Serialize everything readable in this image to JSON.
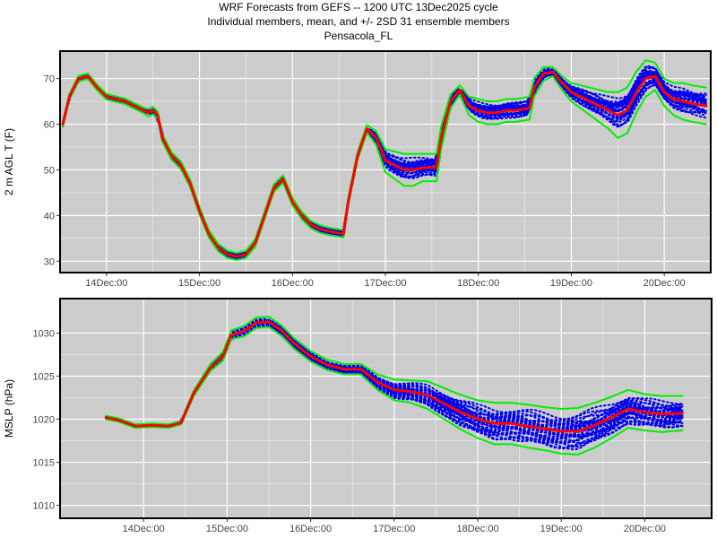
{
  "header": {
    "line1": "WRF Forecasts from GEFS --  1200 UTC 13Dec2025  cycle",
    "line2": "Individual members, mean, and +/- 2SD    31 ensemble members",
    "line3": "Pensacola_FL"
  },
  "colors": {
    "panel_bg": "#cccccc",
    "grid": "#ffffff",
    "members": "#0000ee",
    "mean": "#ff0000",
    "sd": "#00ee00"
  },
  "chart_data": [
    {
      "type": "line",
      "ylabel": "2 m AGL T (F)",
      "xlabel": "",
      "xlim": [
        13.5,
        20.5
      ],
      "ylim": [
        27.5,
        76
      ],
      "x_ticks": [
        14,
        15,
        16,
        17,
        18,
        19,
        20
      ],
      "x_tick_labels": [
        "14Dec:00",
        "15Dec:00",
        "16Dec:00",
        "17Dec:00",
        "18Dec:00",
        "19Dec:00",
        "20Dec:00"
      ],
      "y_ticks": [
        30,
        40,
        50,
        60,
        70
      ],
      "y_tick_labels": [
        "30",
        "40",
        "50",
        "60",
        "70"
      ],
      "ensemble_members": 31,
      "series": [
        {
          "name": "mean",
          "x": [
            13.53,
            13.6,
            13.7,
            13.8,
            13.9,
            14.0,
            14.2,
            14.4,
            14.45,
            14.5,
            14.55,
            14.6,
            14.7,
            14.8,
            14.9,
            15.0,
            15.1,
            15.2,
            15.3,
            15.4,
            15.5,
            15.6,
            15.7,
            15.8,
            15.9,
            16.0,
            16.1,
            16.2,
            16.3,
            16.4,
            16.55,
            16.6,
            16.7,
            16.8,
            16.9,
            17.0,
            17.1,
            17.2,
            17.3,
            17.4,
            17.55,
            17.6,
            17.7,
            17.8,
            17.9,
            18.0,
            18.1,
            18.2,
            18.3,
            18.4,
            18.55,
            18.6,
            18.7,
            18.8,
            18.9,
            19.0,
            19.1,
            19.2,
            19.3,
            19.4,
            19.5,
            19.6,
            19.7,
            19.8,
            19.9,
            20.0,
            20.1,
            20.2,
            20.3,
            20.45
          ],
          "values": [
            60,
            66,
            70,
            70.5,
            68,
            66,
            65,
            63,
            62.5,
            63,
            62,
            57,
            53,
            51,
            47,
            41,
            36,
            33,
            31.5,
            31,
            31.5,
            34,
            40,
            46,
            48,
            43,
            40,
            38,
            37,
            36.5,
            36,
            43,
            53,
            59,
            57,
            52,
            51,
            50,
            50,
            50.5,
            50.5,
            57,
            65,
            67.5,
            64,
            63,
            62.5,
            62.5,
            63,
            63,
            63.5,
            68,
            71,
            71.5,
            69,
            67,
            66,
            65,
            64,
            63,
            62,
            63,
            67,
            70,
            70.5,
            67,
            65.5,
            65,
            64.5,
            64
          ]
        },
        {
          "name": "mean+2SD",
          "x": [
            13.53,
            13.6,
            13.7,
            13.8,
            13.9,
            14.0,
            14.2,
            14.4,
            14.45,
            14.5,
            14.55,
            14.6,
            14.7,
            14.8,
            14.9,
            15.0,
            15.1,
            15.2,
            15.3,
            15.4,
            15.5,
            15.6,
            15.7,
            15.8,
            15.9,
            16.0,
            16.1,
            16.2,
            16.3,
            16.4,
            16.55,
            16.6,
            16.7,
            16.8,
            16.9,
            17.0,
            17.1,
            17.2,
            17.3,
            17.4,
            17.55,
            17.6,
            17.7,
            17.8,
            17.9,
            18.0,
            18.1,
            18.2,
            18.3,
            18.4,
            18.55,
            18.6,
            18.7,
            18.8,
            18.9,
            19.0,
            19.1,
            19.2,
            19.3,
            19.4,
            19.5,
            19.6,
            19.7,
            19.8,
            19.9,
            20.0,
            20.1,
            20.2,
            20.3,
            20.45
          ],
          "values": [
            60.6,
            66.6,
            70.6,
            71.1,
            68.6,
            66.6,
            65.6,
            63.6,
            63.3,
            63.8,
            62.8,
            57.8,
            53.8,
            51.8,
            47.8,
            41.8,
            36.8,
            33.8,
            32.3,
            31.8,
            32.3,
            34.8,
            40.8,
            46.8,
            48.8,
            43.8,
            40.8,
            38.8,
            37.8,
            37.3,
            36.8,
            43.8,
            53.8,
            59.8,
            58.5,
            54.5,
            54,
            53.5,
            53.5,
            53.5,
            53.5,
            59.5,
            66.5,
            68.5,
            66,
            65.5,
            65,
            65,
            65.5,
            65.5,
            66,
            70,
            72.5,
            72.5,
            70.5,
            69,
            68.5,
            68,
            67.5,
            67,
            67,
            68,
            71.5,
            74,
            73.5,
            70,
            69,
            69,
            68.5,
            68
          ]
        },
        {
          "name": "mean-2SD",
          "x": [
            13.53,
            13.6,
            13.7,
            13.8,
            13.9,
            14.0,
            14.2,
            14.4,
            14.45,
            14.5,
            14.55,
            14.6,
            14.7,
            14.8,
            14.9,
            15.0,
            15.1,
            15.2,
            15.3,
            15.4,
            15.5,
            15.6,
            15.7,
            15.8,
            15.9,
            16.0,
            16.1,
            16.2,
            16.3,
            16.4,
            16.55,
            16.6,
            16.7,
            16.8,
            16.9,
            17.0,
            17.1,
            17.2,
            17.3,
            17.4,
            17.55,
            17.6,
            17.7,
            17.8,
            17.9,
            18.0,
            18.1,
            18.2,
            18.3,
            18.4,
            18.55,
            18.6,
            18.7,
            18.8,
            18.9,
            19.0,
            19.1,
            19.2,
            19.3,
            19.4,
            19.5,
            19.6,
            19.7,
            19.8,
            19.9,
            20.0,
            20.1,
            20.2,
            20.3,
            20.45
          ],
          "values": [
            59.4,
            65.4,
            69.4,
            69.9,
            67.4,
            65.4,
            64.4,
            62.4,
            61.7,
            62.2,
            61.2,
            56.2,
            52.2,
            50.2,
            46.2,
            40.2,
            35.2,
            32.2,
            30.7,
            30.2,
            30.7,
            33.2,
            39.2,
            45.2,
            47.2,
            42.2,
            39.2,
            37.2,
            36.2,
            35.7,
            35.2,
            42.2,
            52.2,
            58.2,
            55.5,
            49.5,
            48,
            46.5,
            46.5,
            47.5,
            47.5,
            54.5,
            63.5,
            66.5,
            62,
            60.5,
            60,
            60,
            60.5,
            60.5,
            61,
            66,
            69.5,
            70.5,
            67.5,
            65,
            63.5,
            62,
            60.5,
            59,
            57,
            58,
            62.5,
            66,
            67.5,
            64,
            62,
            61,
            60.5,
            60
          ]
        }
      ]
    },
    {
      "type": "line",
      "ylabel": "MSLP (hPa)",
      "xlabel": "",
      "xlim": [
        13.0,
        20.8
      ],
      "ylim": [
        1008.5,
        1034
      ],
      "x_ticks": [
        14,
        15,
        16,
        17,
        18,
        19,
        20
      ],
      "x_tick_labels": [
        "14Dec:00",
        "15Dec:00",
        "16Dec:00",
        "17Dec:00",
        "18Dec:00",
        "19Dec:00",
        "20Dec:00"
      ],
      "y_ticks": [
        1010,
        1015,
        1020,
        1025,
        1030
      ],
      "y_tick_labels": [
        "1010",
        "1015",
        "1020",
        "1025",
        "1030"
      ],
      "ensemble_members": 31,
      "series": [
        {
          "name": "mean",
          "x": [
            13.55,
            13.7,
            13.9,
            14.1,
            14.3,
            14.45,
            14.6,
            14.8,
            14.95,
            15.05,
            15.2,
            15.35,
            15.5,
            15.65,
            15.8,
            16.0,
            16.2,
            16.4,
            16.6,
            16.8,
            17.0,
            17.2,
            17.4,
            17.6,
            17.8,
            18.0,
            18.2,
            18.4,
            18.6,
            18.8,
            19.0,
            19.2,
            19.4,
            19.6,
            19.8,
            20.0,
            20.2,
            20.45
          ],
          "values": [
            1020.2,
            1019.9,
            1019.2,
            1019.3,
            1019.2,
            1019.6,
            1023,
            1026,
            1027.3,
            1029.8,
            1030.2,
            1031.2,
            1031.3,
            1030.3,
            1028.8,
            1027.3,
            1026.3,
            1025.8,
            1025.8,
            1024.3,
            1023.4,
            1023.2,
            1022.8,
            1021.8,
            1020.8,
            1020,
            1019.5,
            1019.5,
            1019.2,
            1018.9,
            1018.6,
            1018.6,
            1019.3,
            1020.2,
            1021.2,
            1020.8,
            1020.6,
            1020.7
          ]
        },
        {
          "name": "mean+2SD",
          "x": [
            13.55,
            13.7,
            13.9,
            14.1,
            14.3,
            14.45,
            14.6,
            14.8,
            14.95,
            15.05,
            15.2,
            15.35,
            15.5,
            15.65,
            15.8,
            16.0,
            16.2,
            16.4,
            16.6,
            16.8,
            17.0,
            17.2,
            17.4,
            17.6,
            17.8,
            18.0,
            18.2,
            18.4,
            18.6,
            18.8,
            19.0,
            19.2,
            19.4,
            19.6,
            19.8,
            20.0,
            20.2,
            20.45
          ],
          "values": [
            1020.4,
            1020.1,
            1019.4,
            1019.5,
            1019.4,
            1019.8,
            1023.3,
            1026.4,
            1027.8,
            1030.3,
            1030.8,
            1031.8,
            1031.9,
            1030.9,
            1029.4,
            1027.9,
            1026.9,
            1026.4,
            1026.4,
            1025.2,
            1024.6,
            1024.5,
            1024.4,
            1023.6,
            1022.8,
            1022.2,
            1021.9,
            1021.9,
            1021.7,
            1021.4,
            1021.2,
            1021.3,
            1021.9,
            1022.6,
            1023.4,
            1022.9,
            1022.7,
            1022.7
          ]
        },
        {
          "name": "mean-2SD",
          "x": [
            13.55,
            13.7,
            13.9,
            14.1,
            14.3,
            14.45,
            14.6,
            14.8,
            14.95,
            15.05,
            15.2,
            15.35,
            15.5,
            15.65,
            15.8,
            16.0,
            16.2,
            16.4,
            16.6,
            16.8,
            17.0,
            17.2,
            17.4,
            17.6,
            17.8,
            18.0,
            18.2,
            18.4,
            18.6,
            18.8,
            19.0,
            19.2,
            19.4,
            19.6,
            19.8,
            20.0,
            20.2,
            20.45
          ],
          "values": [
            1020,
            1019.7,
            1019,
            1019.1,
            1019,
            1019.4,
            1022.7,
            1025.6,
            1026.8,
            1029.3,
            1029.6,
            1030.6,
            1030.7,
            1029.7,
            1028.2,
            1026.7,
            1025.7,
            1025.2,
            1025.2,
            1023.4,
            1022.2,
            1021.9,
            1021.2,
            1020,
            1018.8,
            1017.8,
            1017.1,
            1017.1,
            1016.7,
            1016.4,
            1016,
            1015.9,
            1016.7,
            1017.8,
            1019,
            1018.7,
            1018.5,
            1018.7
          ]
        }
      ]
    }
  ]
}
